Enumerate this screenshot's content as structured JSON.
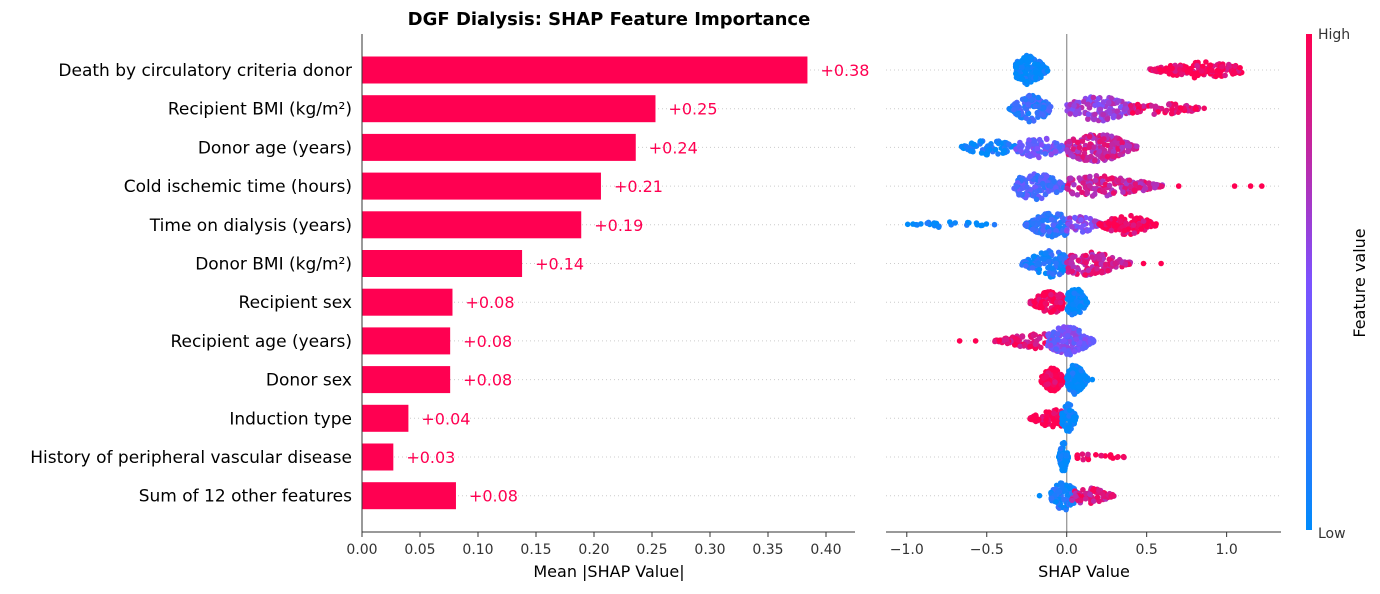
{
  "chart_data": [
    {
      "type": "bar",
      "orientation": "horizontal",
      "title": "DGF Dialysis: SHAP Feature Importance",
      "xlabel": "Mean |SHAP Value|",
      "xlim": [
        0.0,
        0.425
      ],
      "xticks": [
        "0.00",
        "0.05",
        "0.10",
        "0.15",
        "0.20",
        "0.25",
        "0.30",
        "0.35",
        "0.40"
      ],
      "bar_color": "#ff0051",
      "categories": [
        "Death by circulatory criteria donor",
        "Recipient BMI (kg/m²)",
        "Donor age (years)",
        "Cold ischemic time (hours)",
        "Time on dialysis (years)",
        "Donor BMI (kg/m²)",
        "Recipient sex",
        "Recipient age (years)",
        "Donor sex",
        "Induction type",
        "History of peripheral vascular disease",
        "Sum of 12 other features"
      ],
      "values": [
        0.384,
        0.253,
        0.236,
        0.206,
        0.189,
        0.138,
        0.078,
        0.076,
        0.076,
        0.04,
        0.027,
        0.081
      ],
      "value_labels": [
        "+0.38",
        "+0.25",
        "+0.24",
        "+0.21",
        "+0.19",
        "+0.14",
        "+0.08",
        "+0.08",
        "+0.08",
        "+0.04",
        "+0.03",
        "+0.08"
      ]
    },
    {
      "type": "scatter",
      "subtype": "beeswarm",
      "xlabel": "SHAP Value",
      "xlim": [
        -1.13,
        1.34
      ],
      "xticks": [
        -1.0,
        -0.5,
        0.0,
        0.5,
        1.0
      ],
      "xtick_labels": [
        "−1.0",
        "−0.5",
        "0.0",
        "0.5",
        "1.0"
      ],
      "colorbar": {
        "label": "Feature value",
        "high": "High",
        "low": "Low",
        "low_color": "#008bfb",
        "mid_color": "#7c52ff",
        "high_color": "#ff0051"
      },
      "rows": [
        {
          "groups": [
            {
              "min": -0.32,
              "max": -0.12,
              "center": -0.24,
              "spread": 1.0,
              "n": 190,
              "color": 0.02
            },
            {
              "min": 0.52,
              "max": 1.1,
              "center": 0.85,
              "spread": 0.55,
              "n": 150,
              "color": 0.97
            }
          ],
          "outliers": []
        },
        {
          "groups": [
            {
              "min": -0.36,
              "max": -0.1,
              "center": -0.22,
              "spread": 0.9,
              "n": 130,
              "color": 0.2
            },
            {
              "min": 0.0,
              "max": 0.45,
              "center": 0.2,
              "spread": 0.85,
              "n": 150,
              "color": 0.62
            },
            {
              "min": 0.4,
              "max": 0.87,
              "center": 0.55,
              "spread": 0.4,
              "n": 70,
              "color": 0.92
            }
          ],
          "outliers": []
        },
        {
          "groups": [
            {
              "min": -0.66,
              "max": -0.3,
              "center": -0.48,
              "spread": 0.55,
              "n": 70,
              "color": 0.05
            },
            {
              "min": -0.32,
              "max": 0.0,
              "center": -0.18,
              "spread": 0.7,
              "n": 100,
              "color": 0.42
            },
            {
              "min": 0.0,
              "max": 0.44,
              "center": 0.17,
              "spread": 1.0,
              "n": 190,
              "color": 0.78
            }
          ],
          "outliers": []
        },
        {
          "groups": [
            {
              "min": -0.33,
              "max": 0.0,
              "center": -0.2,
              "spread": 0.9,
              "n": 150,
              "color": 0.3
            },
            {
              "min": 0.0,
              "max": 0.6,
              "center": 0.18,
              "spread": 0.7,
              "n": 160,
              "color": 0.8
            }
          ],
          "outliers": [
            {
              "x": 0.7,
              "color": 1.0
            },
            {
              "x": 1.05,
              "color": 1.0
            },
            {
              "x": 1.15,
              "color": 1.0
            },
            {
              "x": 1.22,
              "color": 1.0
            }
          ]
        },
        {
          "groups": [
            {
              "min": -1.0,
              "max": -0.45,
              "center": -0.75,
              "spread": 0.22,
              "n": 26,
              "color": 0.0
            },
            {
              "min": -0.26,
              "max": 0.0,
              "center": -0.08,
              "spread": 0.9,
              "n": 120,
              "color": 0.2
            },
            {
              "min": 0.0,
              "max": 0.23,
              "center": 0.07,
              "spread": 0.6,
              "n": 60,
              "color": 0.55
            },
            {
              "min": 0.2,
              "max": 0.56,
              "center": 0.38,
              "spread": 0.7,
              "n": 110,
              "color": 0.95
            }
          ],
          "outliers": []
        },
        {
          "groups": [
            {
              "min": -0.28,
              "max": 0.0,
              "center": -0.1,
              "spread": 0.9,
              "n": 150,
              "color": 0.12
            },
            {
              "min": 0.0,
              "max": 0.4,
              "center": 0.12,
              "spread": 0.8,
              "n": 130,
              "color": 0.82
            }
          ],
          "outliers": [
            {
              "x": 0.48,
              "color": 1.0
            },
            {
              "x": 0.59,
              "color": 1.0
            }
          ]
        },
        {
          "groups": [
            {
              "min": -0.23,
              "max": -0.02,
              "center": -0.1,
              "spread": 0.75,
              "n": 120,
              "color": 1.0
            },
            {
              "min": 0.0,
              "max": 0.13,
              "center": 0.05,
              "spread": 1.0,
              "n": 110,
              "color": 0.0
            }
          ],
          "outliers": []
        },
        {
          "groups": [
            {
              "min": -0.45,
              "max": -0.08,
              "center": -0.14,
              "spread": 0.55,
              "n": 90,
              "color": 0.92
            },
            {
              "min": -0.12,
              "max": 0.17,
              "center": 0.0,
              "spread": 1.0,
              "n": 170,
              "color": 0.45
            }
          ],
          "outliers": [
            {
              "x": -0.67,
              "color": 1.0
            },
            {
              "x": -0.57,
              "color": 1.0
            }
          ]
        },
        {
          "groups": [
            {
              "min": -0.16,
              "max": -0.01,
              "center": -0.09,
              "spread": 0.8,
              "n": 120,
              "color": 1.0
            },
            {
              "min": 0.0,
              "max": 0.13,
              "center": 0.05,
              "spread": 1.0,
              "n": 120,
              "color": 0.0
            }
          ],
          "outliers": [
            {
              "x": 0.16,
              "color": 0.0
            }
          ]
        },
        {
          "groups": [
            {
              "min": -0.23,
              "max": -0.02,
              "center": -0.08,
              "spread": 0.6,
              "n": 70,
              "color": 1.0
            },
            {
              "min": -0.03,
              "max": 0.06,
              "center": 0.01,
              "spread": 1.0,
              "n": 80,
              "color": 0.0
            }
          ],
          "outliers": []
        },
        {
          "groups": [
            {
              "min": -0.05,
              "max": 0.01,
              "center": -0.02,
              "spread": 1.0,
              "n": 80,
              "color": 0.0
            },
            {
              "min": 0.06,
              "max": 0.36,
              "center": 0.17,
              "spread": 0.25,
              "n": 22,
              "color": 0.97
            }
          ],
          "outliers": []
        },
        {
          "groups": [
            {
              "min": -0.1,
              "max": 0.08,
              "center": -0.02,
              "spread": 1.0,
              "n": 110,
              "color": 0.1
            },
            {
              "min": 0.03,
              "max": 0.3,
              "center": 0.12,
              "spread": 0.55,
              "n": 70,
              "color": 0.85
            }
          ],
          "outliers": [
            {
              "x": -0.17,
              "color": 0.0
            }
          ]
        }
      ]
    }
  ]
}
